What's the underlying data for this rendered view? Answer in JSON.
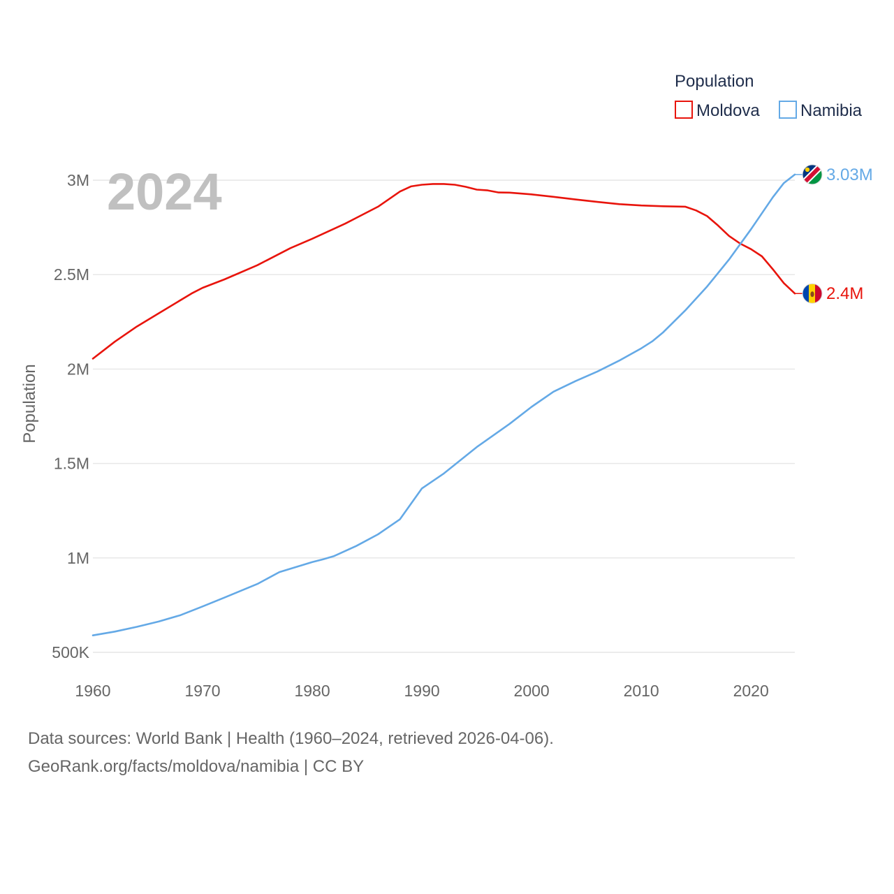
{
  "chart_data": {
    "type": "line",
    "year_label": "2024",
    "xlim": [
      1960,
      2024
    ],
    "ylim": [
      500000,
      3000000
    ],
    "x_ticks": [
      1960,
      1970,
      1980,
      1990,
      2000,
      2010,
      2020
    ],
    "x_tick_labels": [
      "1960",
      "1970",
      "1980",
      "1990",
      "2000",
      "2010",
      "2020"
    ],
    "y_ticks": [
      500000,
      1000000,
      1500000,
      2000000,
      2500000,
      3000000
    ],
    "y_tick_labels": [
      "500K",
      "1M",
      "1.5M",
      "2M",
      "2.5M",
      "3M"
    ],
    "ylabel": "Population",
    "legend_title": "Population",
    "series": [
      {
        "name": "Moldova",
        "color": "#e8140c",
        "end_label": "2.4M",
        "flag_icon": "moldova-flag-icon",
        "points": [
          [
            1960,
            2055000
          ],
          [
            1962,
            2145000
          ],
          [
            1964,
            2225000
          ],
          [
            1966,
            2295000
          ],
          [
            1969,
            2400000
          ],
          [
            1970,
            2430000
          ],
          [
            1972,
            2475000
          ],
          [
            1975,
            2550000
          ],
          [
            1978,
            2640000
          ],
          [
            1980,
            2690000
          ],
          [
            1983,
            2770000
          ],
          [
            1986,
            2860000
          ],
          [
            1988,
            2940000
          ],
          [
            1989,
            2967000
          ],
          [
            1990,
            2976000
          ],
          [
            1991,
            2980000
          ],
          [
            1992,
            2980000
          ],
          [
            1993,
            2976000
          ],
          [
            1994,
            2965000
          ],
          [
            1995,
            2950000
          ],
          [
            1996,
            2946000
          ],
          [
            1997,
            2935000
          ],
          [
            1998,
            2934000
          ],
          [
            2000,
            2925000
          ],
          [
            2002,
            2912000
          ],
          [
            2004,
            2898000
          ],
          [
            2006,
            2885000
          ],
          [
            2008,
            2873000
          ],
          [
            2010,
            2866000
          ],
          [
            2012,
            2862000
          ],
          [
            2014,
            2860000
          ],
          [
            2015,
            2840000
          ],
          [
            2016,
            2810000
          ],
          [
            2017,
            2760000
          ],
          [
            2018,
            2705000
          ],
          [
            2019,
            2665000
          ],
          [
            2020,
            2635000
          ],
          [
            2021,
            2597000
          ],
          [
            2022,
            2528000
          ],
          [
            2023,
            2455000
          ],
          [
            2024,
            2400000
          ]
        ]
      },
      {
        "name": "Namibia",
        "color": "#64a9e6",
        "end_label": "3.03M",
        "flag_icon": "namibia-flag-icon",
        "points": [
          [
            1960,
            590000
          ],
          [
            1962,
            610000
          ],
          [
            1964,
            635000
          ],
          [
            1966,
            663000
          ],
          [
            1968,
            697000
          ],
          [
            1970,
            743000
          ],
          [
            1972,
            790000
          ],
          [
            1975,
            862000
          ],
          [
            1977,
            925000
          ],
          [
            1980,
            978000
          ],
          [
            1981,
            993000
          ],
          [
            1982,
            1010000
          ],
          [
            1984,
            1063000
          ],
          [
            1986,
            1125000
          ],
          [
            1988,
            1205000
          ],
          [
            1990,
            1368000
          ],
          [
            1992,
            1447000
          ],
          [
            1995,
            1587000
          ],
          [
            1998,
            1710000
          ],
          [
            2000,
            1800000
          ],
          [
            2002,
            1880000
          ],
          [
            2004,
            1936000
          ],
          [
            2006,
            1987000
          ],
          [
            2008,
            2045000
          ],
          [
            2010,
            2110000
          ],
          [
            2011,
            2147000
          ],
          [
            2012,
            2195000
          ],
          [
            2014,
            2310000
          ],
          [
            2016,
            2437000
          ],
          [
            2018,
            2580000
          ],
          [
            2020,
            2740000
          ],
          [
            2022,
            2910000
          ],
          [
            2023,
            2985000
          ],
          [
            2024,
            3030000
          ]
        ]
      }
    ]
  },
  "footer": {
    "line1": "Data sources: World Bank | Health (1960–2024, retrieved 2026-04-06).",
    "line2": "GeoRank.org/facts/moldova/namibia | CC BY"
  }
}
